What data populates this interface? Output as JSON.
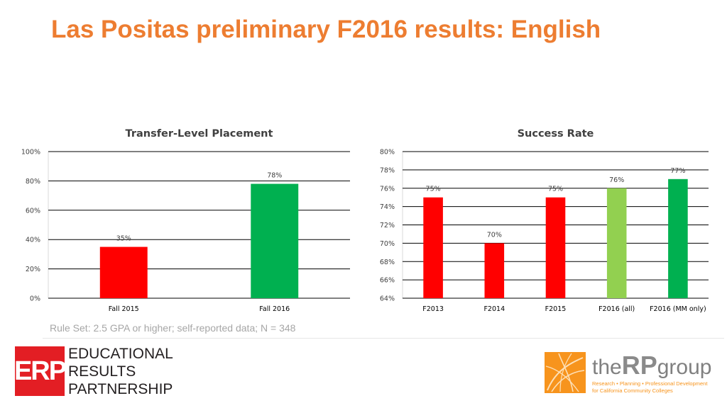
{
  "slide": {
    "title": "Las Positas preliminary F2016 results: English",
    "footnote": "Rule Set: 2.5 GPA or higher; self-reported data; N = 348"
  },
  "chart_data": [
    {
      "type": "bar",
      "title": "Transfer-Level Placement",
      "categories": [
        "Fall 2015",
        "Fall 2016"
      ],
      "values": [
        35,
        78
      ],
      "data_labels": [
        "35%",
        "78%"
      ],
      "colors": [
        "#ff0000",
        "#00b050"
      ],
      "ylim": [
        0,
        100
      ],
      "yticks": [
        0,
        20,
        40,
        60,
        80,
        100
      ],
      "ytick_labels": [
        "0%",
        "20%",
        "40%",
        "60%",
        "80%",
        "100%"
      ],
      "grid": true,
      "xlabel": "",
      "ylabel": ""
    },
    {
      "type": "bar",
      "title": "Success Rate",
      "categories": [
        "F2013",
        "F2014",
        "F2015",
        "F2016 (all)",
        "F2016 (MM only)"
      ],
      "values": [
        75,
        70,
        75,
        76,
        77
      ],
      "data_labels": [
        "75%",
        "70%",
        "75%",
        "76%",
        "77%"
      ],
      "colors": [
        "#ff0000",
        "#ff0000",
        "#ff0000",
        "#92d050",
        "#00b050"
      ],
      "ylim": [
        64,
        80
      ],
      "yticks": [
        64,
        66,
        68,
        70,
        72,
        74,
        76,
        78,
        80
      ],
      "ytick_labels": [
        "64%",
        "66%",
        "68%",
        "70%",
        "72%",
        "74%",
        "76%",
        "78%",
        "80%"
      ],
      "grid": true,
      "xlabel": "",
      "ylabel": ""
    }
  ],
  "logos": {
    "erp": {
      "mark": "ERP",
      "lines": [
        "EDUCATIONAL",
        "RESULTS",
        "PARTNERSHIP"
      ],
      "color": "#e31e24"
    },
    "rp": {
      "name_prefix": "the",
      "name_big": "RP",
      "name_suffix": "group",
      "tagline": [
        "Research • Planning • Professional Development",
        "for California Community Colleges"
      ],
      "color": "#f7941d"
    }
  }
}
